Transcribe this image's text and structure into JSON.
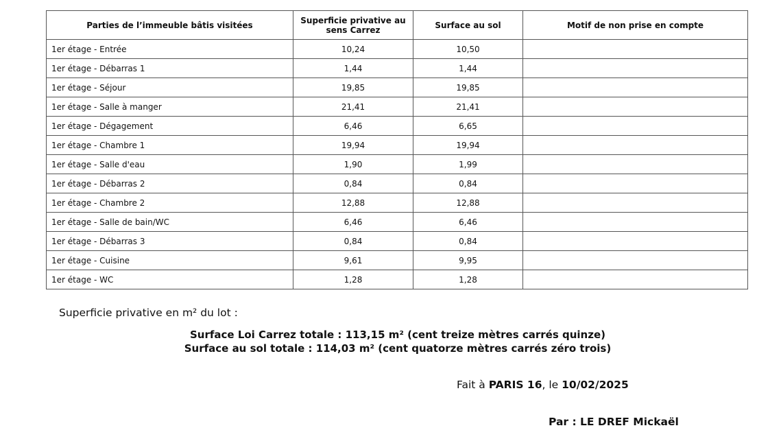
{
  "table": {
    "headers": [
      "Parties de l’immeuble bâtis visitées",
      "Superficie privative au sens Carrez",
      "Surface au sol",
      "Motif de non prise en compte"
    ],
    "rows": [
      [
        "1er étage - Entrée",
        "10,24",
        "10,50",
        ""
      ],
      [
        "1er étage - Débarras 1",
        "1,44",
        "1,44",
        ""
      ],
      [
        "1er étage - Séjour",
        "19,85",
        "19,85",
        ""
      ],
      [
        "1er étage - Salle à manger",
        "21,41",
        "21,41",
        ""
      ],
      [
        "1er étage - Dégagement",
        "6,46",
        "6,65",
        ""
      ],
      [
        "1er étage - Chambre 1",
        "19,94",
        "19,94",
        ""
      ],
      [
        "1er étage - Salle d'eau",
        "1,90",
        "1,99",
        ""
      ],
      [
        "1er étage - Débarras 2",
        "0,84",
        "0,84",
        ""
      ],
      [
        "1er étage - Chambre 2",
        "12,88",
        "12,88",
        ""
      ],
      [
        "1er étage - Salle de bain/WC",
        "6,46",
        "6,46",
        ""
      ],
      [
        "1er étage - Débarras 3",
        "0,84",
        "0,84",
        ""
      ],
      [
        "1er étage - Cuisine",
        "9,61",
        "9,95",
        ""
      ],
      [
        "1er étage - WC",
        "1,28",
        "1,28",
        ""
      ]
    ]
  },
  "summary": {
    "lot_label": "Superficie privative en m² du lot :",
    "carrez_total": "Surface Loi Carrez totale : 113,15 m² (cent treize mètres carrés quinze)",
    "sol_total": "Surface au sol totale : 114,03 m² (cent quatorze mètres carrés zéro trois)"
  },
  "signature": {
    "fait_prefix": "Fait à ",
    "city": "PARIS 16",
    "le": ", le ",
    "date": "10/02/2025",
    "par": "Par : LE DREF Mickaël"
  }
}
